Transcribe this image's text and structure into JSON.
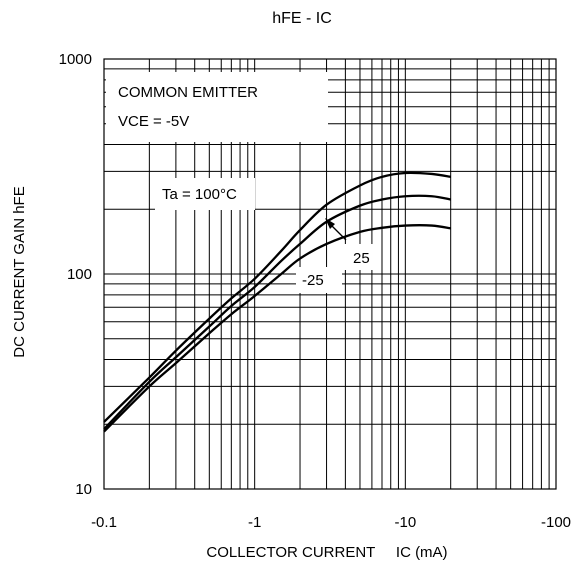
{
  "chart_data": {
    "type": "line",
    "title": "hFE  -  IC",
    "xlabel": "COLLECTOR CURRENT     IC (mA)",
    "ylabel": "DC CURRENT GAIN  hFE",
    "x_scale": "log",
    "y_scale": "log",
    "xlim": [
      -0.1,
      -100
    ],
    "ylim": [
      10,
      1000
    ],
    "x_ticks": [
      -0.1,
      -1,
      -10,
      -100
    ],
    "x_tick_labels": [
      "-0.1",
      "-1",
      "-10",
      "-100"
    ],
    "y_ticks": [
      10,
      100,
      1000
    ],
    "y_tick_labels": [
      "10",
      "100",
      "1000"
    ],
    "grid": true,
    "annotations": {
      "condition_line1": "COMMON EMITTER",
      "condition_line2": "VCE = -5V",
      "label_ta_100": "Ta = 100°C",
      "label_ta_25": "25",
      "label_ta_m25": "-25"
    },
    "series": [
      {
        "x": [
          -0.1,
          -0.2,
          -0.3,
          -0.5,
          -0.7,
          -1,
          -1.5,
          -2,
          -3,
          -5,
          -7,
          -10,
          -15,
          -20
        ],
        "values": [
          20.5,
          33,
          44,
          62,
          77,
          95,
          128,
          160,
          210,
          258,
          283,
          295,
          292,
          283
        ]
      },
      {
        "x": [
          -0.1,
          -0.2,
          -0.3,
          -0.5,
          -0.7,
          -1,
          -1.5,
          -2,
          -3,
          -5,
          -7,
          -10,
          -15,
          -20
        ],
        "values": [
          19,
          31.5,
          41,
          57,
          71,
          87,
          115,
          138,
          175,
          208,
          222,
          230,
          230,
          222
        ]
      },
      {
        "x": [
          -0.1,
          -0.2,
          -0.3,
          -0.5,
          -0.7,
          -1,
          -1.5,
          -2,
          -3,
          -5,
          -7,
          -10,
          -15,
          -20
        ],
        "values": [
          18.5,
          30,
          38.5,
          53,
          65,
          79,
          100,
          118,
          138,
          157,
          164,
          168,
          168,
          163
        ]
      }
    ]
  }
}
